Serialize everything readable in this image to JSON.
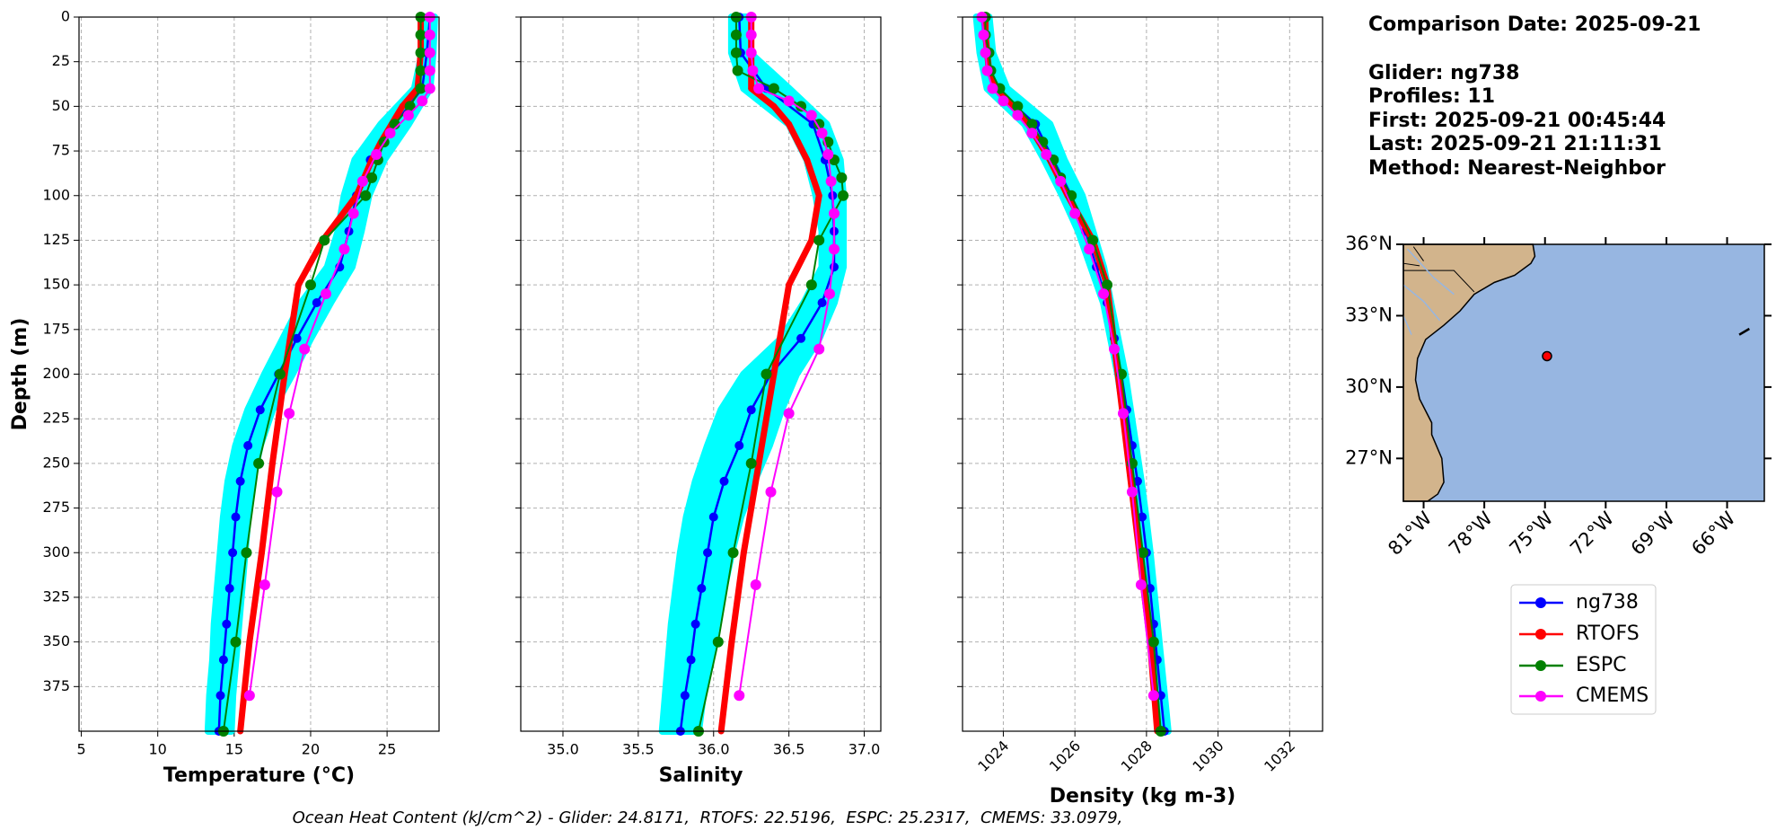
{
  "chart_data": {
    "type": "line",
    "ylabel": "Depth (m)",
    "ylim": [
      0,
      400
    ],
    "y_inverted": true,
    "yticks": [
      0,
      25,
      50,
      75,
      100,
      125,
      150,
      175,
      200,
      225,
      250,
      275,
      300,
      325,
      350,
      375
    ],
    "grid": true,
    "panels": [
      {
        "key": "temperature",
        "xlabel": "Temperature (°C)",
        "xlim": [
          4.85,
          28.4
        ],
        "xticks": [
          5,
          10,
          15,
          20,
          25
        ],
        "rotate_xticks": false,
        "show_ytick_labels": true
      },
      {
        "key": "salinity",
        "xlabel": "Salinity",
        "xlim": [
          34.72,
          37.11
        ],
        "xticks": [
          {
            "value": 35,
            "label": "35.0"
          },
          35.5,
          {
            "value": 36,
            "label": "36.0"
          },
          36.5,
          {
            "value": 37,
            "label": "37.0"
          }
        ],
        "rotate_xticks": false,
        "show_ytick_labels": false
      },
      {
        "key": "density",
        "xlabel": "Density (kg m-3)",
        "xlim": [
          1022.86,
          1032.92
        ],
        "xticks": [
          1024,
          1026,
          1028,
          1030,
          1032
        ],
        "rotate_xticks": true,
        "show_ytick_labels": false
      }
    ],
    "band": {
      "color": "#00ffff",
      "depth": [
        0,
        20,
        40,
        60,
        80,
        100,
        120,
        140,
        160,
        180,
        200,
        220,
        240,
        260,
        280,
        300,
        320,
        340,
        360,
        380,
        400
      ],
      "temperature": {
        "lower": [
          27.5,
          27.3,
          26.8,
          24.6,
          22.9,
          22.2,
          21.8,
          21.1,
          19.4,
          18.2,
          17.0,
          15.9,
          15.1,
          14.6,
          14.3,
          14.1,
          13.9,
          13.7,
          13.6,
          13.4,
          13.3
        ],
        "upper": [
          28.1,
          28.0,
          27.8,
          26.4,
          24.8,
          23.8,
          23.3,
          22.7,
          21.3,
          20.0,
          18.8,
          17.5,
          16.7,
          16.2,
          15.9,
          15.7,
          15.5,
          15.3,
          15.1,
          14.9,
          14.8
        ]
      },
      "salinity": {
        "lower": [
          36.12,
          36.12,
          36.2,
          36.5,
          36.62,
          36.68,
          36.72,
          36.72,
          36.6,
          36.45,
          36.2,
          36.05,
          35.96,
          35.88,
          35.82,
          35.78,
          35.75,
          35.72,
          35.7,
          35.68,
          35.66
        ],
        "upper": [
          36.22,
          36.24,
          36.5,
          36.75,
          36.84,
          36.86,
          36.86,
          36.86,
          36.8,
          36.7,
          36.55,
          36.45,
          36.37,
          36.27,
          36.18,
          36.12,
          36.07,
          36.02,
          35.98,
          35.93,
          35.9
        ]
      },
      "density": {
        "lower": [
          1023.25,
          1023.35,
          1023.55,
          1024.6,
          1025.15,
          1025.65,
          1026.1,
          1026.45,
          1026.8,
          1027.0,
          1027.2,
          1027.35,
          1027.5,
          1027.65,
          1027.78,
          1027.9,
          1028.0,
          1028.1,
          1028.2,
          1028.3,
          1028.4
        ],
        "upper": [
          1023.6,
          1023.7,
          1024.1,
          1025.3,
          1025.7,
          1026.2,
          1026.5,
          1026.8,
          1027.0,
          1027.2,
          1027.4,
          1027.55,
          1027.7,
          1027.85,
          1027.98,
          1028.1,
          1028.2,
          1028.3,
          1028.4,
          1028.5,
          1028.6
        ]
      }
    },
    "series": [
      {
        "name": "ng738",
        "color": "#0000ff",
        "linewidth": 2.5,
        "marker_size": 5,
        "depth": [
          0,
          20,
          40,
          60,
          80,
          100,
          120,
          140,
          160,
          180,
          200,
          220,
          240,
          260,
          280,
          300,
          320,
          340,
          360,
          380,
          400
        ],
        "temperature": [
          27.8,
          27.6,
          27.3,
          25.5,
          23.9,
          23.0,
          22.5,
          21.9,
          20.4,
          19.1,
          17.9,
          16.7,
          15.9,
          15.4,
          15.1,
          14.9,
          14.7,
          14.5,
          14.3,
          14.1,
          14.0
        ],
        "salinity": [
          36.17,
          36.18,
          36.35,
          36.66,
          36.74,
          36.79,
          36.8,
          36.8,
          36.72,
          36.58,
          36.38,
          36.25,
          36.17,
          36.07,
          36.0,
          35.96,
          35.92,
          35.88,
          35.85,
          35.81,
          35.78
        ],
        "density": [
          1023.4,
          1023.5,
          1023.8,
          1024.9,
          1025.4,
          1025.9,
          1026.3,
          1026.6,
          1026.9,
          1027.1,
          1027.3,
          1027.45,
          1027.6,
          1027.75,
          1027.88,
          1028.0,
          1028.1,
          1028.2,
          1028.3,
          1028.4,
          1028.5
        ]
      },
      {
        "name": "RTOFS",
        "color": "#ff0000",
        "linewidth": 7,
        "marker_size": 3.5,
        "depth": [
          0,
          10,
          20,
          30,
          40,
          50,
          60,
          70,
          80,
          90,
          100,
          125,
          150,
          200,
          250,
          300,
          350,
          400
        ],
        "temperature": [
          27.2,
          27.2,
          27.2,
          27.1,
          27.0,
          26.0,
          25.3,
          24.6,
          24.0,
          23.5,
          23.0,
          20.8,
          19.2,
          18.3,
          17.5,
          16.8,
          16.0,
          15.4
        ],
        "salinity": [
          36.25,
          36.25,
          36.25,
          36.25,
          36.25,
          36.4,
          36.5,
          36.56,
          36.62,
          36.66,
          36.7,
          36.65,
          36.5,
          36.4,
          36.3,
          36.2,
          36.12,
          36.05
        ],
        "density": [
          1023.5,
          1023.5,
          1023.55,
          1023.6,
          1023.8,
          1024.3,
          1024.7,
          1025.0,
          1025.3,
          1025.55,
          1025.8,
          1026.5,
          1026.9,
          1027.2,
          1027.5,
          1027.8,
          1028.1,
          1028.3
        ]
      },
      {
        "name": "ESPC",
        "color": "#008000",
        "linewidth": 2,
        "marker_size": 6,
        "depth": [
          0,
          10,
          20,
          30,
          40,
          50,
          60,
          70,
          80,
          90,
          100,
          125,
          150,
          200,
          250,
          300,
          350,
          400
        ],
        "temperature": [
          27.2,
          27.2,
          27.2,
          27.2,
          27.2,
          26.5,
          25.5,
          24.8,
          24.4,
          24.0,
          23.6,
          20.9,
          20.0,
          18.0,
          16.6,
          15.8,
          15.1,
          14.3
        ],
        "salinity": [
          36.15,
          36.15,
          36.15,
          36.16,
          36.4,
          36.58,
          36.7,
          36.76,
          36.8,
          36.85,
          36.86,
          36.7,
          36.65,
          36.35,
          36.25,
          36.13,
          36.03,
          35.9
        ],
        "density": [
          1023.5,
          1023.5,
          1023.6,
          1023.65,
          1023.9,
          1024.4,
          1024.8,
          1025.1,
          1025.4,
          1025.6,
          1025.9,
          1026.5,
          1026.9,
          1027.3,
          1027.6,
          1027.9,
          1028.2,
          1028.4
        ]
      },
      {
        "name": "CMEMS",
        "color": "#ff00ff",
        "linewidth": 2,
        "marker_size": 6,
        "depth": [
          0,
          10,
          20,
          30,
          40,
          47,
          55,
          65,
          77,
          92,
          110,
          130,
          155,
          186,
          222,
          266,
          318,
          380
        ],
        "temperature": [
          27.8,
          27.8,
          27.8,
          27.8,
          27.8,
          27.3,
          26.4,
          25.2,
          24.3,
          23.4,
          22.8,
          22.2,
          21.0,
          19.6,
          18.6,
          17.8,
          17.0,
          16.0
        ],
        "salinity": [
          36.25,
          36.25,
          36.25,
          36.26,
          36.3,
          36.5,
          36.65,
          36.72,
          36.76,
          36.78,
          36.8,
          36.8,
          36.77,
          36.7,
          36.5,
          36.38,
          36.28,
          36.17
        ],
        "density": [
          1023.4,
          1023.45,
          1023.5,
          1023.55,
          1023.7,
          1024.0,
          1024.4,
          1024.8,
          1025.2,
          1025.6,
          1026.0,
          1026.4,
          1026.8,
          1027.1,
          1027.35,
          1027.6,
          1027.85,
          1028.2
        ]
      }
    ]
  },
  "info": {
    "lines": [
      "Comparison Date: 2025-09-21",
      "Glider: ng738",
      "Profiles: 11",
      "First: 2025-09-21 00:45:44",
      "Last: 2025-09-21 21:11:31",
      "Method: Nearest-Neighbor"
    ]
  },
  "map": {
    "xlim": [
      -82.0,
      -64.16
    ],
    "ylim": [
      25.2,
      36.0
    ],
    "xticks": [
      {
        "value": -81,
        "label": "81°W"
      },
      {
        "value": -78,
        "label": "78°W"
      },
      {
        "value": -75,
        "label": "75°W"
      },
      {
        "value": -72,
        "label": "72°W"
      },
      {
        "value": -69,
        "label": "69°W"
      },
      {
        "value": -66,
        "label": "66°W"
      }
    ],
    "yticks": [
      {
        "value": 36,
        "label": "36°N"
      },
      {
        "value": 33,
        "label": "33°N"
      },
      {
        "value": 30,
        "label": "30°N"
      },
      {
        "value": 27,
        "label": "27°N"
      }
    ],
    "ocean_color": "#97b6e1",
    "land_color": "#d2b48c",
    "glider_position": {
      "lon": -74.9,
      "lat": 31.3
    }
  },
  "footer": "Ocean Heat Content (kJ/cm^2) - Glider: 24.8171,  RTOFS: 22.5196,  ESPC: 25.2317,  CMEMS: 33.0979,"
}
